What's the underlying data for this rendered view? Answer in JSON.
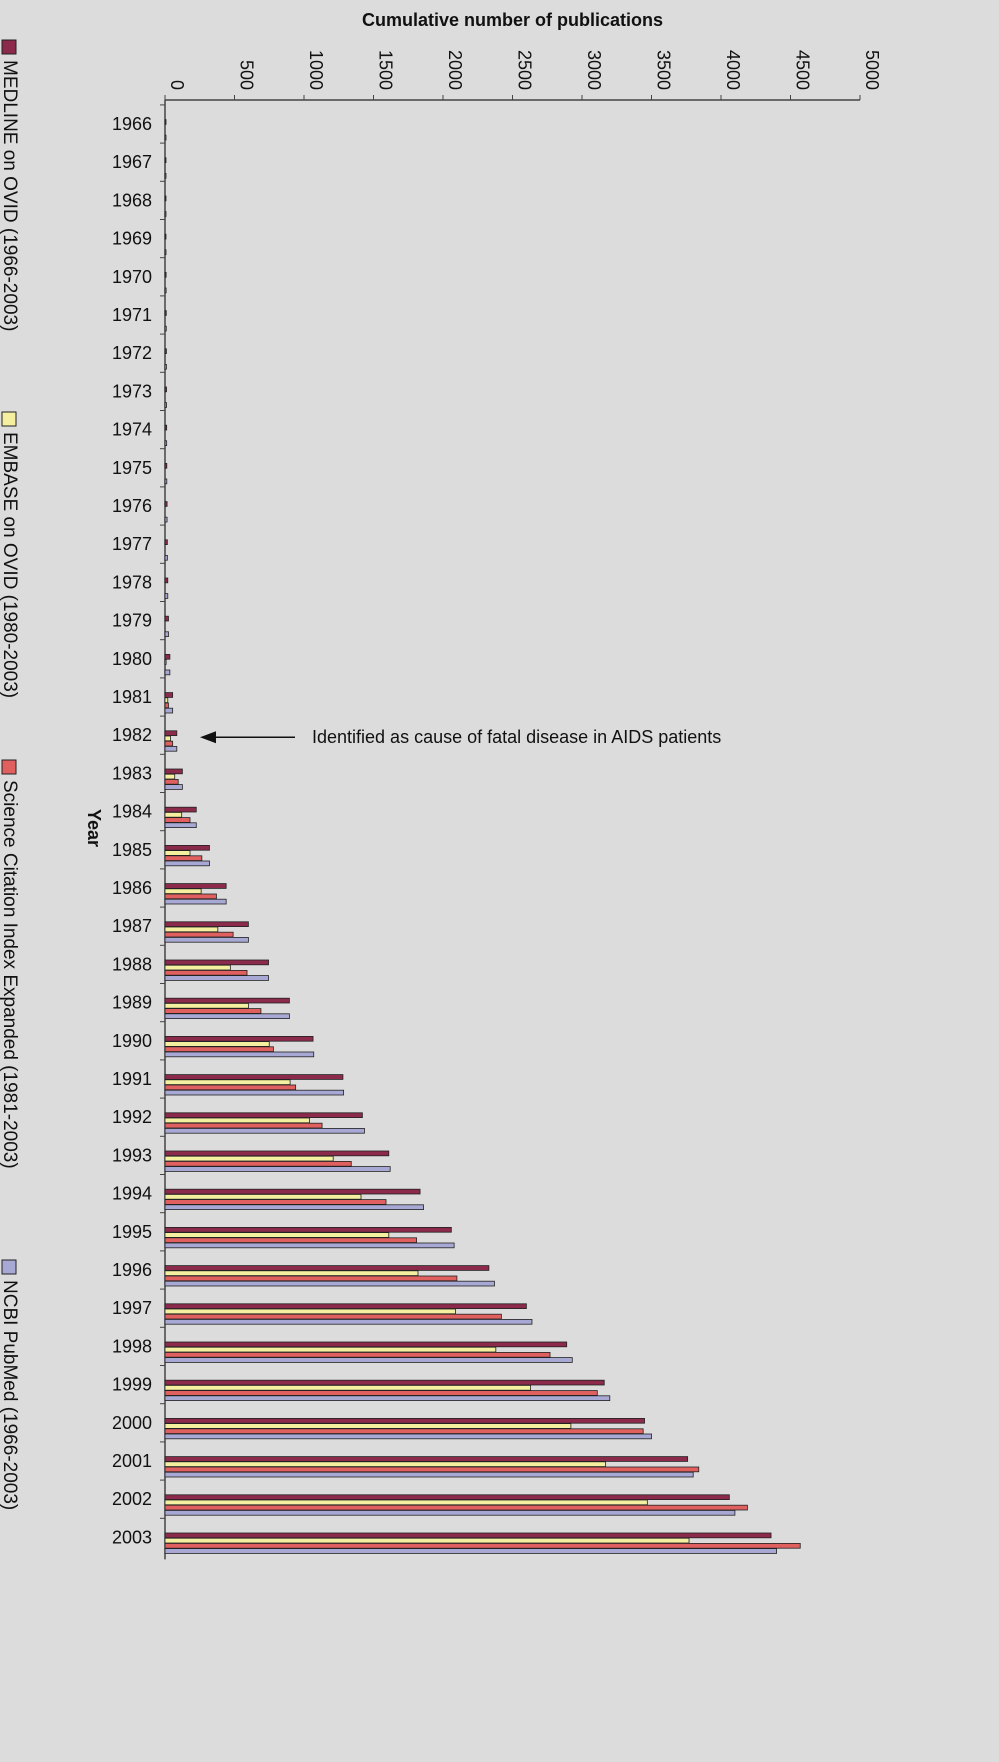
{
  "chart_data": {
    "type": "bar",
    "orientation": "horizontal",
    "title": "",
    "xlabel": "Cumulative number of publications",
    "ylabel": "Year",
    "xlim": [
      0,
      5000
    ],
    "xticks": [
      "0",
      "500",
      "1000",
      "1500",
      "2000",
      "2500",
      "3000",
      "3500",
      "4000",
      "4500",
      "5000"
    ],
    "grid": false,
    "legend_position": "left-vertical",
    "categories": [
      "1966",
      "1967",
      "1968",
      "1969",
      "1970",
      "1971",
      "1972",
      "1973",
      "1974",
      "1975",
      "1976",
      "1977",
      "1978",
      "1979",
      "1980",
      "1981",
      "1982",
      "1983",
      "1984",
      "1985",
      "1986",
      "1987",
      "1988",
      "1989",
      "1990",
      "1991",
      "1992",
      "1993",
      "1994",
      "1995",
      "1996",
      "1997",
      "1998",
      "1999",
      "2000",
      "2001",
      "2002",
      "2003"
    ],
    "series": [
      {
        "name": "MEDLINE on OVID (1966-2003)",
        "color": "#8b2a4a",
        "values": [
          3,
          5,
          6,
          7,
          8,
          9,
          10,
          11,
          12,
          13,
          15,
          17,
          20,
          25,
          35,
          55,
          85,
          125,
          225,
          320,
          440,
          600,
          745,
          895,
          1065,
          1280,
          1420,
          1610,
          1835,
          2060,
          2330,
          2600,
          2890,
          3160,
          3450,
          3760,
          4060,
          4360
        ]
      },
      {
        "name": "EMBASE on OVID (1980-2003)",
        "color": "#f4f0a0",
        "values": [
          0,
          0,
          0,
          0,
          0,
          0,
          0,
          0,
          0,
          0,
          0,
          0,
          0,
          0,
          8,
          20,
          40,
          70,
          120,
          180,
          260,
          380,
          470,
          600,
          750,
          900,
          1040,
          1210,
          1410,
          1610,
          1820,
          2090,
          2380,
          2630,
          2920,
          3170,
          3470,
          3770
        ]
      },
      {
        "name": "Science Citation Index Expanded (1981-2003)",
        "color": "#e06060",
        "values": [
          0,
          0,
          0,
          0,
          0,
          0,
          0,
          0,
          0,
          0,
          0,
          0,
          0,
          0,
          0,
          25,
          55,
          95,
          180,
          265,
          370,
          490,
          590,
          690,
          780,
          940,
          1130,
          1340,
          1590,
          1810,
          2100,
          2420,
          2770,
          3110,
          3440,
          3840,
          4190,
          4570
        ]
      },
      {
        "name": "NCBI PubMed (1966-2003)",
        "color": "#a8a8d4",
        "values": [
          3,
          5,
          6,
          7,
          8,
          9,
          10,
          11,
          12,
          13,
          15,
          17,
          20,
          25,
          35,
          55,
          85,
          125,
          225,
          320,
          440,
          600,
          745,
          895,
          1070,
          1285,
          1435,
          1620,
          1860,
          2080,
          2370,
          2640,
          2930,
          3200,
          3500,
          3800,
          4100,
          4400
        ]
      }
    ],
    "annotations": [
      {
        "text": "Identified as cause of fatal disease in AIDS patients",
        "category": "1982"
      }
    ]
  }
}
